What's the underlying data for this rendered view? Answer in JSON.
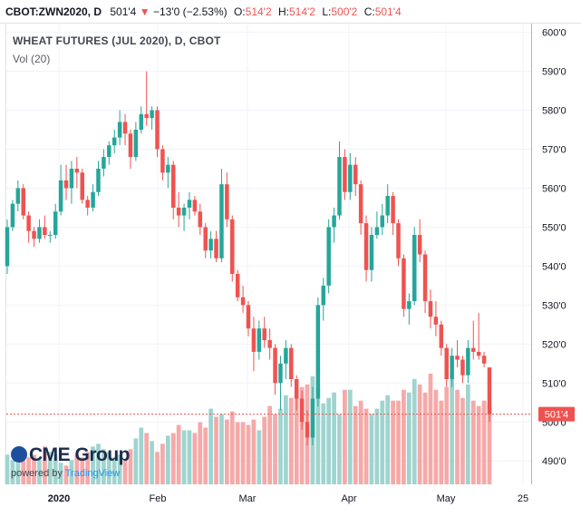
{
  "header": {
    "symbol": "CBOT:ZWN2020, D",
    "last": "501'4",
    "change_arrow": "▼",
    "change": "−13'0 (−2.53%)",
    "o_label": "O:",
    "o_value": "514'2",
    "h_label": "H:",
    "h_value": "514'2",
    "l_label": "L:",
    "l_value": "500'2",
    "c_label": "C:",
    "c_value": "501'4"
  },
  "legend": {
    "title": "WHEAT FUTURES (JUL 2020), D, CBOT",
    "volume": "Vol (20)"
  },
  "price_axis": {
    "ticks": [
      "600'0",
      "590'0",
      "580'0",
      "570'0",
      "560'0",
      "550'0",
      "540'0",
      "530'0",
      "520'0",
      "510'0",
      "500'0",
      "490'0"
    ]
  },
  "time_axis": {
    "ticks": [
      "2020",
      "Feb",
      "Mar",
      "Apr",
      "May",
      "25"
    ]
  },
  "last_price_label": "501'4",
  "branding": {
    "logo": "CME Group",
    "powered": "powered by",
    "provider": "TradingView"
  },
  "colors": {
    "up": "#26a69a",
    "down": "#ef5350",
    "vol_up": "#9fd4cf",
    "vol_down": "#f5a9a8",
    "last_line": "#ef5350"
  },
  "chart_data": {
    "type": "candlestick",
    "ylim": [
      484,
      602
    ],
    "grid": true,
    "candles": [
      [
        540.0,
        552.0,
        538.0,
        550.0
      ],
      [
        550.0,
        557.0,
        549.0,
        556.0
      ],
      [
        556.0,
        562.0,
        554.0,
        560.0
      ],
      [
        560.0,
        561.0,
        552.0,
        553.0
      ],
      [
        553.0,
        554.0,
        546.0,
        549.0
      ],
      [
        549.0,
        550.0,
        545.0,
        547.0
      ],
      [
        547.0,
        552.0,
        546.0,
        550.0
      ],
      [
        550.0,
        553.0,
        547.0,
        548.0
      ],
      [
        548.0,
        549.0,
        546.0,
        548.0
      ],
      [
        548.0,
        556.0,
        547.0,
        554.0
      ],
      [
        554.0,
        566.0,
        553.0,
        562.0
      ],
      [
        562.0,
        566.0,
        557.0,
        560.0
      ],
      [
        560.0,
        567.0,
        556.0,
        565.0
      ],
      [
        565.0,
        568.0,
        560.0,
        564.0
      ],
      [
        564.0,
        565.0,
        556.0,
        557.0
      ],
      [
        557.0,
        558.0,
        553.0,
        555.0
      ],
      [
        555.0,
        561.0,
        554.0,
        559.0
      ],
      [
        559.0,
        567.0,
        558.0,
        565.0
      ],
      [
        565.0,
        570.0,
        563.0,
        568.0
      ],
      [
        568.0,
        572.0,
        566.0,
        571.0
      ],
      [
        571.0,
        575.0,
        569.0,
        573.0
      ],
      [
        573.0,
        580.0,
        571.0,
        577.0
      ],
      [
        577.0,
        579.0,
        571.0,
        574.0
      ],
      [
        574.0,
        575.0,
        565.0,
        568.0
      ],
      [
        568.0,
        577.0,
        567.0,
        575.0
      ],
      [
        575.0,
        581.0,
        574.0,
        579.0
      ],
      [
        579.0,
        590.0,
        576.0,
        578.0
      ],
      [
        578.0,
        581.0,
        575.0,
        580.0
      ],
      [
        580.0,
        581.0,
        568.0,
        570.0
      ],
      [
        570.0,
        571.0,
        562.0,
        564.0
      ],
      [
        564.0,
        568.0,
        560.0,
        566.0
      ],
      [
        566.0,
        567.0,
        552.0,
        555.0
      ],
      [
        555.0,
        559.0,
        550.0,
        553.0
      ],
      [
        553.0,
        556.0,
        549.0,
        555.0
      ],
      [
        555.0,
        559.0,
        552.0,
        557.0
      ],
      [
        557.0,
        558.0,
        553.0,
        554.0
      ],
      [
        554.0,
        556.0,
        548.0,
        550.0
      ],
      [
        550.0,
        551.0,
        542.0,
        544.0
      ],
      [
        544.0,
        549.0,
        542.0,
        547.0
      ],
      [
        547.0,
        549.0,
        541.0,
        542.0
      ],
      [
        542.0,
        565.0,
        541.0,
        561.0
      ],
      [
        561.0,
        564.0,
        550.0,
        552.0
      ],
      [
        552.0,
        553.0,
        536.0,
        538.0
      ],
      [
        538.0,
        539.0,
        531.0,
        532.0
      ],
      [
        532.0,
        535.0,
        528.0,
        530.0
      ],
      [
        530.0,
        531.0,
        522.0,
        524.0
      ],
      [
        524.0,
        527.0,
        513.0,
        518.0
      ],
      [
        518.0,
        526.0,
        516.0,
        524.0
      ],
      [
        524.0,
        527.0,
        519.0,
        521.0
      ],
      [
        521.0,
        524.0,
        516.0,
        519.0
      ],
      [
        519.0,
        520.0,
        507.0,
        510.0
      ],
      [
        510.0,
        517.0,
        503.0,
        515.0
      ],
      [
        515.0,
        521.0,
        511.0,
        519.0
      ],
      [
        519.0,
        520.0,
        509.0,
        511.0
      ],
      [
        511.0,
        512.0,
        503.0,
        506.0
      ],
      [
        506.0,
        508.0,
        498.0,
        500.0
      ],
      [
        500.0,
        503.0,
        494.0,
        496.0
      ],
      [
        496.0,
        509.0,
        494.0,
        506.0
      ],
      [
        506.0,
        532.0,
        504.0,
        530.0
      ],
      [
        530.0,
        537.0,
        526.0,
        535.0
      ],
      [
        535.0,
        552.0,
        533.0,
        550.0
      ],
      [
        550.0,
        555.0,
        546.0,
        553.0
      ],
      [
        553.0,
        572.0,
        552.0,
        568.0
      ],
      [
        568.0,
        570.0,
        557.0,
        559.0
      ],
      [
        559.0,
        569.0,
        557.0,
        566.0
      ],
      [
        566.0,
        568.0,
        558.0,
        561.0
      ],
      [
        561.0,
        562.0,
        548.0,
        551.0
      ],
      [
        551.0,
        553.0,
        536.0,
        539.0
      ],
      [
        539.0,
        550.0,
        536.0,
        548.0
      ],
      [
        548.0,
        554.0,
        547.0,
        550.0
      ],
      [
        550.0,
        556.0,
        548.0,
        553.0
      ],
      [
        553.0,
        561.0,
        551.0,
        558.0
      ],
      [
        558.0,
        559.0,
        548.0,
        551.0
      ],
      [
        551.0,
        552.0,
        540.0,
        542.0
      ],
      [
        542.0,
        543.0,
        527.0,
        529.0
      ],
      [
        529.0,
        533.0,
        525.0,
        531.0
      ],
      [
        531.0,
        550.0,
        530.0,
        548.0
      ],
      [
        548.0,
        552.0,
        541.0,
        543.0
      ],
      [
        543.0,
        544.0,
        528.0,
        531.0
      ],
      [
        531.0,
        534.0,
        524.0,
        527.0
      ],
      [
        527.0,
        531.0,
        522.0,
        525.0
      ],
      [
        525.0,
        526.0,
        517.0,
        519.0
      ],
      [
        519.0,
        520.0,
        509.0,
        511.0
      ],
      [
        511.0,
        519.0,
        509.0,
        517.0
      ],
      [
        517.0,
        521.0,
        514.0,
        516.0
      ],
      [
        516.0,
        517.0,
        510.0,
        512.0
      ],
      [
        512.0,
        521.0,
        510.0,
        519.0
      ],
      [
        519.0,
        526.0,
        516.0,
        518.0
      ],
      [
        518.0,
        528.0,
        516.0,
        517.0
      ],
      [
        517.0,
        518.0,
        514.0,
        515.0
      ],
      [
        514.0,
        514.0,
        500.0,
        502.0
      ]
    ],
    "volume": [
      11,
      9,
      8,
      13,
      10,
      11,
      9,
      14,
      12,
      11,
      8,
      7,
      9,
      11,
      10,
      12,
      14,
      15,
      13,
      12,
      10,
      11,
      9,
      13,
      17,
      21,
      19,
      16,
      12,
      15,
      18,
      19,
      22,
      20,
      20,
      19,
      23,
      21,
      28,
      25,
      26,
      24,
      27,
      23,
      23,
      22,
      24,
      20,
      25,
      29,
      26,
      28,
      33,
      32,
      34,
      36,
      37,
      40,
      36,
      30,
      32,
      34,
      26,
      35,
      35,
      29,
      31,
      28,
      26,
      28,
      31,
      33,
      31,
      31,
      35,
      34,
      39,
      37,
      34,
      41,
      35,
      31,
      36,
      39,
      35,
      32,
      37,
      31,
      29,
      31,
      30
    ],
    "volume_max": 45
  }
}
